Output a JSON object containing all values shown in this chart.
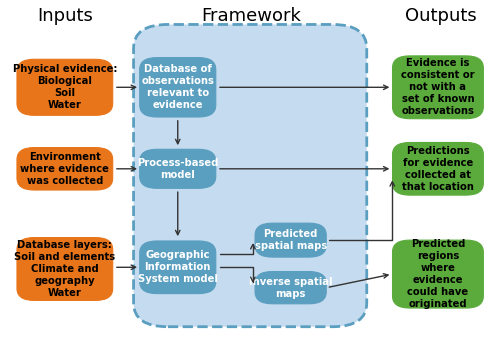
{
  "title_inputs": "Inputs",
  "title_framework": "Framework",
  "title_outputs": "Outputs",
  "orange_color": "#E8751A",
  "blue_box_color": "#5A9EC0",
  "blue_bg_color": "#C5DCF0",
  "blue_bg_edge": "#5A9EC0",
  "green_color": "#5AAB3C",
  "bg_color": "#FFFFFF",
  "arrow_color": "#333333",
  "font_size": 7.2,
  "title_font_size": 13
}
